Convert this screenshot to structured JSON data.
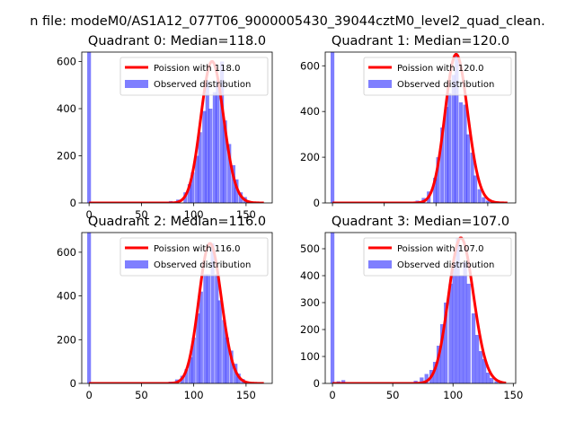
{
  "suptitle": "n file: modeM0/AS1A12_077T06_9000005430_39044cztM0_level2_quad_clean.",
  "colors": {
    "model": "#ff0000",
    "observed": "#0000ff"
  },
  "chart_data": [
    {
      "type": "bar",
      "title": "Quadrant 0: Median=118.0",
      "legend": [
        "Poission with 118.0",
        "Observed distribution"
      ],
      "legend_position": "top-right",
      "median": 118,
      "xlim": [
        -7,
        175
      ],
      "ylim": [
        0,
        640
      ],
      "xticks": [
        0,
        50,
        100,
        150
      ],
      "yticks": [
        0,
        200,
        400,
        600
      ],
      "show_xtick_labels": true,
      "observed": {
        "bin_width": 3.6,
        "bins": [
          [
            0,
            640
          ],
          [
            72,
            4
          ],
          [
            78,
            8
          ],
          [
            85,
            14
          ],
          [
            92,
            45
          ],
          [
            96,
            80
          ],
          [
            99,
            130
          ],
          [
            103,
            200
          ],
          [
            106,
            300
          ],
          [
            110,
            390
          ],
          [
            113,
            520
          ],
          [
            116,
            400
          ],
          [
            120,
            470
          ],
          [
            123,
            520
          ],
          [
            127,
            600
          ],
          [
            130,
            350
          ],
          [
            134,
            250
          ],
          [
            138,
            160
          ],
          [
            141,
            100
          ],
          [
            145,
            45
          ],
          [
            149,
            25
          ],
          [
            152,
            10
          ],
          [
            156,
            4
          ]
        ]
      }
    },
    {
      "type": "bar",
      "title": "Quadrant 1: Median=120.0",
      "legend": [
        "Poission with 120.0",
        "Observed distribution"
      ],
      "legend_position": "top-right",
      "median": 120,
      "xlim": [
        -7,
        177
      ],
      "ylim": [
        0,
        660
      ],
      "xticks": [
        0,
        50,
        100,
        150
      ],
      "yticks": [
        0,
        200,
        400,
        600
      ],
      "show_xtick_labels": false,
      "observed": {
        "bin_width": 3.6,
        "bins": [
          [
            0,
            660
          ],
          [
            76,
            4
          ],
          [
            82,
            10
          ],
          [
            88,
            22
          ],
          [
            93,
            50
          ],
          [
            99,
            110
          ],
          [
            102,
            200
          ],
          [
            106,
            330
          ],
          [
            110,
            420
          ],
          [
            113,
            480
          ],
          [
            117,
            560
          ],
          [
            120,
            650
          ],
          [
            124,
            440
          ],
          [
            128,
            430
          ],
          [
            131,
            300
          ],
          [
            135,
            220
          ],
          [
            138,
            120
          ],
          [
            142,
            60
          ],
          [
            146,
            25
          ],
          [
            150,
            10
          ],
          [
            154,
            4
          ]
        ]
      }
    },
    {
      "type": "bar",
      "title": "Quadrant 2: Median=116.0",
      "legend": [
        "Poission with 116.0",
        "Observed distribution"
      ],
      "legend_position": "top-right",
      "median": 116,
      "xlim": [
        -7,
        175
      ],
      "ylim": [
        0,
        690
      ],
      "xticks": [
        0,
        50,
        100,
        150
      ],
      "yticks": [
        0,
        200,
        400,
        600
      ],
      "show_xtick_labels": true,
      "observed": {
        "bin_width": 3.6,
        "bins": [
          [
            0,
            690
          ],
          [
            70,
            4
          ],
          [
            78,
            8
          ],
          [
            84,
            18
          ],
          [
            89,
            35
          ],
          [
            93,
            65
          ],
          [
            97,
            120
          ],
          [
            100,
            210
          ],
          [
            104,
            320
          ],
          [
            107,
            420
          ],
          [
            111,
            500
          ],
          [
            114,
            500
          ],
          [
            118,
            640
          ],
          [
            122,
            500
          ],
          [
            125,
            380
          ],
          [
            129,
            290
          ],
          [
            132,
            210
          ],
          [
            136,
            150
          ],
          [
            140,
            90
          ],
          [
            143,
            45
          ],
          [
            147,
            20
          ],
          [
            151,
            8
          ]
        ]
      }
    },
    {
      "type": "bar",
      "title": "Quadrant 3: Median=107.0",
      "legend": [
        "Poission with 107.0",
        "Observed distribution"
      ],
      "legend_position": "top-right",
      "median": 107,
      "xlim": [
        -6,
        152
      ],
      "ylim": [
        0,
        560
      ],
      "xticks": [
        0,
        50,
        100,
        150
      ],
      "yticks": [
        0,
        100,
        200,
        300,
        400,
        500
      ],
      "show_xtick_labels": true,
      "observed": {
        "bin_width": 3.2,
        "bins": [
          [
            0,
            560
          ],
          [
            5,
            8
          ],
          [
            9,
            12
          ],
          [
            63,
            4
          ],
          [
            69,
            10
          ],
          [
            74,
            22
          ],
          [
            78,
            35
          ],
          [
            82,
            50
          ],
          [
            85,
            80
          ],
          [
            88,
            140
          ],
          [
            91,
            220
          ],
          [
            94,
            300
          ],
          [
            98,
            370
          ],
          [
            101,
            450
          ],
          [
            104,
            540
          ],
          [
            107,
            400
          ],
          [
            110,
            450
          ],
          [
            113,
            370
          ],
          [
            117,
            260
          ],
          [
            120,
            180
          ],
          [
            123,
            120
          ],
          [
            126,
            90
          ],
          [
            129,
            40
          ],
          [
            132,
            20
          ],
          [
            136,
            8
          ]
        ]
      }
    }
  ]
}
